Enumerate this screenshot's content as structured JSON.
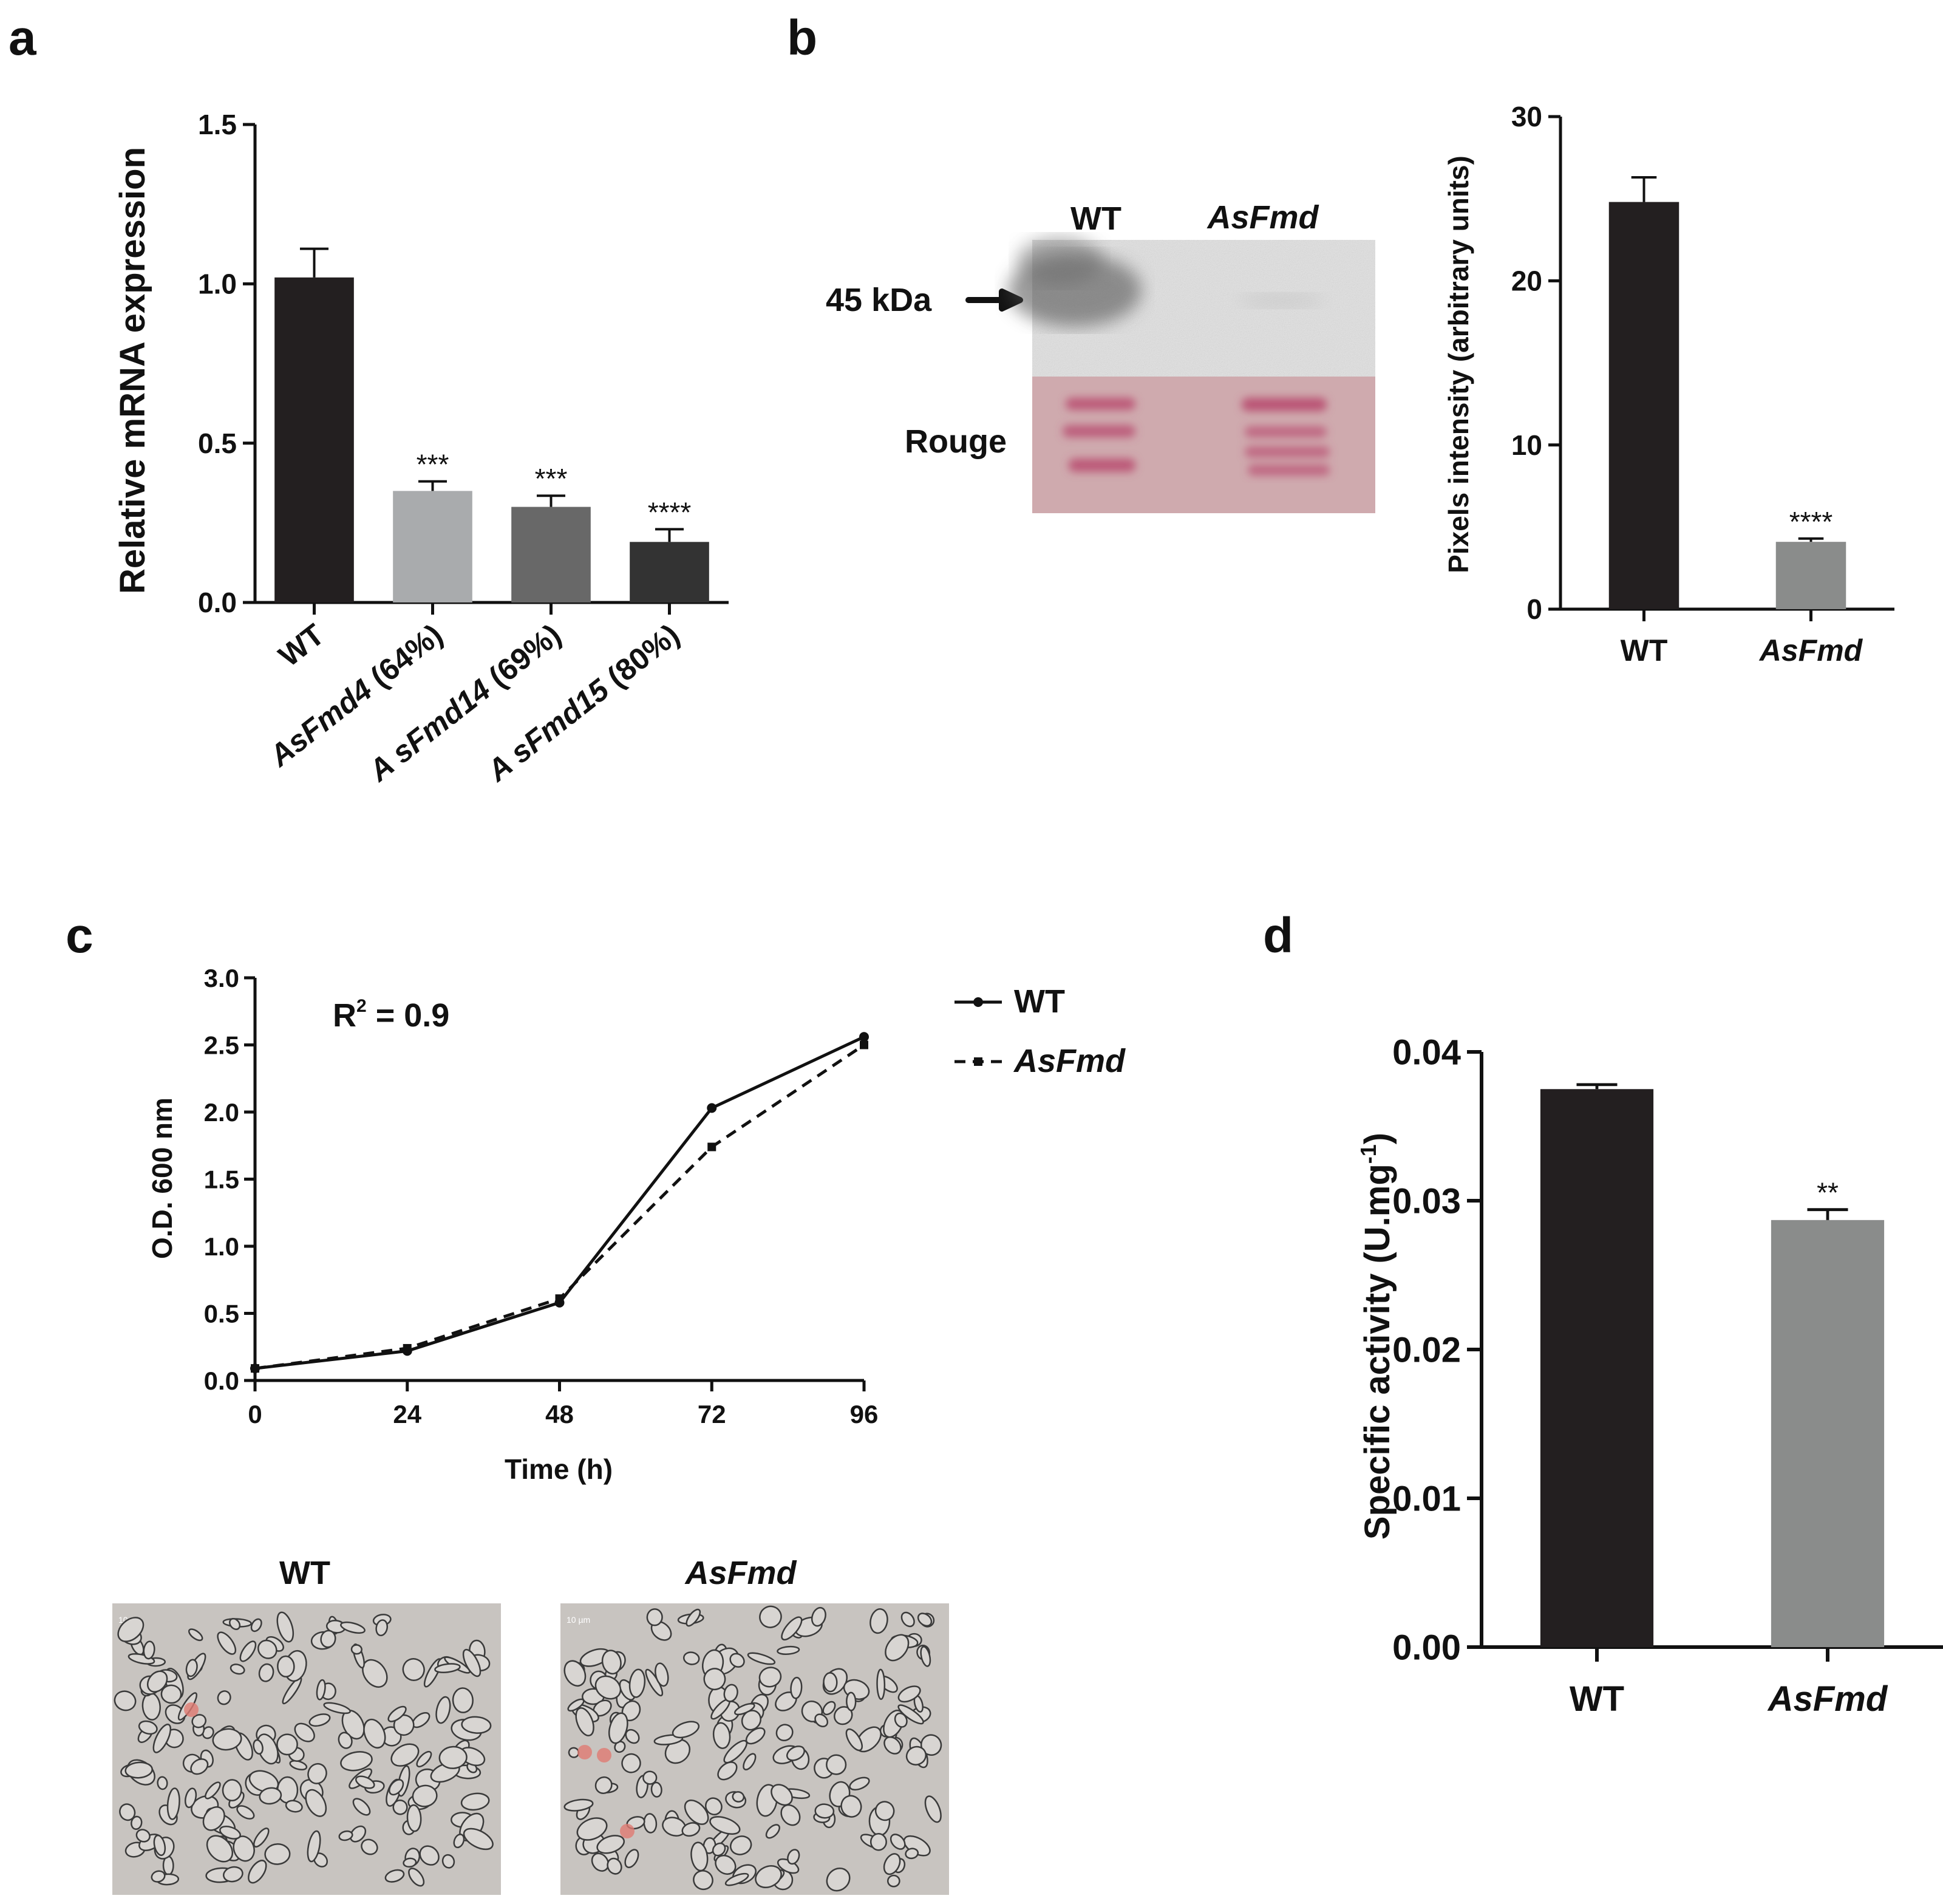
{
  "panels": {
    "a": "a",
    "b": "b",
    "c": "c",
    "d": "d"
  },
  "colors": {
    "black_bar": "#231f20",
    "light_gray_bar": "#a9abad",
    "mid_gray_bar": "#686868",
    "dark_gray_bar": "#333333",
    "gray_bar": "#8a8c8b",
    "blot_bg": "#e4e4e4",
    "rouge_bg": "#cfa8ac",
    "rouge_band": "#b84a6e",
    "micro_bg": "#c7c3bf"
  },
  "blot": {
    "lane_wt": "WT",
    "lane_mut": "AsFmd",
    "marker": "45 kDa",
    "stain": "Rouge"
  },
  "micrographs": {
    "wt_title": "WT",
    "mut_title": "AsFmd",
    "scale_text": "10 µm"
  },
  "chart_data": [
    {
      "id": "a",
      "type": "bar",
      "ylabel": "Relative mRNA expression",
      "ylim": [
        0,
        1.5
      ],
      "yticks": [
        "0.0",
        "0.5",
        "1.0",
        "1.5"
      ],
      "categories": [
        {
          "name": "WT",
          "suffix": ""
        },
        {
          "name": "AsFmd4",
          "suffix": " (64%)"
        },
        {
          "name": "A sFmd14",
          "suffix": " (69%)"
        },
        {
          "name": "A sFmd15",
          "suffix": " (80%)"
        }
      ],
      "values": [
        1.02,
        0.35,
        0.3,
        0.19
      ],
      "errors": [
        0.09,
        0.03,
        0.035,
        0.04
      ],
      "significance": [
        "",
        "***",
        "***",
        "****"
      ],
      "bar_colors": [
        "#231f20",
        "#a9abad",
        "#686868",
        "#333333"
      ]
    },
    {
      "id": "b",
      "type": "bar",
      "ylabel": "Pixels intensity (arbitrary units)",
      "ylim": [
        0,
        30
      ],
      "yticks": [
        "0",
        "10",
        "20",
        "30"
      ],
      "categories": [
        "WT",
        "AsFmd"
      ],
      "values": [
        24.8,
        4.1
      ],
      "errors": [
        1.5,
        0.2
      ],
      "significance": [
        "",
        "****"
      ],
      "bar_colors": [
        "#231f20",
        "#8a8c8b"
      ]
    },
    {
      "id": "c",
      "type": "line",
      "xlabel": "Time (h)",
      "ylabel": "O.D. 600 nm",
      "annotation": "R",
      "annotation_sup": "2",
      "annotation_rest": " = 0.9",
      "xlim": [
        0,
        96
      ],
      "ylim": [
        0,
        3.0
      ],
      "xticks": [
        "0",
        "24",
        "48",
        "72",
        "96"
      ],
      "yticks": [
        "0.0",
        "0.5",
        "1.0",
        "1.5",
        "2.0",
        "2.5",
        "3.0"
      ],
      "x": [
        0,
        24,
        48,
        72,
        96
      ],
      "series": [
        {
          "name": "WT",
          "values": [
            0.09,
            0.22,
            0.58,
            2.03,
            2.56
          ],
          "style": "solid"
        },
        {
          "name": "AsFmd",
          "values": [
            0.09,
            0.24,
            0.61,
            1.74,
            2.5
          ],
          "style": "dashed"
        }
      ],
      "legend": "top-right"
    },
    {
      "id": "d",
      "type": "bar",
      "ylabel": "Specific activity (U.mg",
      "ylabel_sup": "-1",
      "ylabel_close": ")",
      "ylim": [
        0,
        0.04
      ],
      "yticks": [
        "0.00",
        "0.01",
        "0.02",
        "0.03",
        "0.04"
      ],
      "categories": [
        "WT",
        "AsFmd"
      ],
      "values": [
        0.0375,
        0.0287
      ],
      "errors": [
        0.0003,
        0.0007
      ],
      "significance": [
        "",
        "**"
      ],
      "bar_colors": [
        "#231f20",
        "#8a8c8b"
      ]
    }
  ]
}
